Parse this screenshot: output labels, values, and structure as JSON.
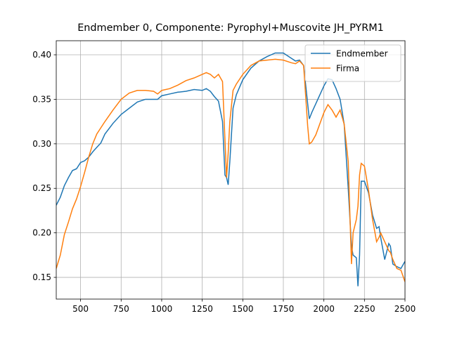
{
  "chart_data": {
    "type": "line",
    "title": "Endmember 0, Componente: Pyrophyl+Muscovite JH_PYRM1",
    "x": [
      350,
      375,
      400,
      425,
      450,
      475,
      500,
      525,
      550,
      575,
      600,
      625,
      650,
      700,
      750,
      800,
      850,
      900,
      950,
      975,
      1000,
      1050,
      1100,
      1150,
      1200,
      1250,
      1275,
      1300,
      1325,
      1350,
      1375,
      1390,
      1400,
      1410,
      1420,
      1440,
      1460,
      1500,
      1550,
      1600,
      1650,
      1700,
      1750,
      1800,
      1825,
      1850,
      1875,
      1900,
      1910,
      1925,
      1950,
      2000,
      2025,
      2050,
      2075,
      2100,
      2125,
      2150,
      2170,
      2180,
      2200,
      2210,
      2220,
      2230,
      2250,
      2275,
      2300,
      2325,
      2340,
      2350,
      2375,
      2400,
      2410,
      2425,
      2450,
      2475,
      2500
    ],
    "series": [
      {
        "name": "Endmember",
        "color": "#1f77b4",
        "values": [
          0.231,
          0.24,
          0.253,
          0.262,
          0.27,
          0.272,
          0.279,
          0.281,
          0.285,
          0.291,
          0.296,
          0.301,
          0.311,
          0.323,
          0.333,
          0.34,
          0.347,
          0.35,
          0.35,
          0.35,
          0.354,
          0.356,
          0.358,
          0.359,
          0.361,
          0.36,
          0.362,
          0.359,
          0.353,
          0.348,
          0.325,
          0.265,
          0.262,
          0.254,
          0.28,
          0.34,
          0.355,
          0.372,
          0.385,
          0.393,
          0.398,
          0.402,
          0.402,
          0.396,
          0.393,
          0.394,
          0.388,
          0.345,
          0.328,
          0.335,
          0.345,
          0.365,
          0.373,
          0.372,
          0.362,
          0.35,
          0.322,
          0.25,
          0.185,
          0.175,
          0.172,
          0.14,
          0.175,
          0.258,
          0.258,
          0.245,
          0.22,
          0.205,
          0.207,
          0.195,
          0.17,
          0.188,
          0.185,
          0.165,
          0.162,
          0.16,
          0.168
        ]
      },
      {
        "name": "Firma",
        "color": "#ff7f0e",
        "values": [
          0.16,
          0.175,
          0.198,
          0.212,
          0.227,
          0.238,
          0.252,
          0.268,
          0.285,
          0.3,
          0.311,
          0.318,
          0.325,
          0.338,
          0.35,
          0.357,
          0.36,
          0.36,
          0.359,
          0.356,
          0.36,
          0.362,
          0.366,
          0.371,
          0.374,
          0.378,
          0.38,
          0.378,
          0.374,
          0.378,
          0.37,
          0.305,
          0.262,
          0.29,
          0.325,
          0.36,
          0.367,
          0.378,
          0.388,
          0.393,
          0.394,
          0.395,
          0.394,
          0.391,
          0.39,
          0.393,
          0.388,
          0.32,
          0.3,
          0.302,
          0.31,
          0.335,
          0.344,
          0.338,
          0.33,
          0.338,
          0.322,
          0.28,
          0.165,
          0.2,
          0.215,
          0.23,
          0.265,
          0.278,
          0.275,
          0.248,
          0.215,
          0.19,
          0.195,
          0.2,
          0.19,
          0.18,
          0.178,
          0.17,
          0.16,
          0.158,
          0.145
        ]
      }
    ],
    "xlim": [
      350,
      2500
    ],
    "ylim": [
      0.1256,
      0.4158
    ],
    "xticks": [
      500,
      750,
      1000,
      1250,
      1500,
      1750,
      2000,
      2250,
      2500
    ],
    "yticks": [
      0.15,
      {
        "value": 0.2,
        "label": "0.20"
      },
      0.25,
      {
        "value": 0.3,
        "label": "0.30"
      },
      0.35,
      {
        "value": 0.4,
        "label": "0.40"
      }
    ],
    "grid": true,
    "legend": "upper-right"
  }
}
